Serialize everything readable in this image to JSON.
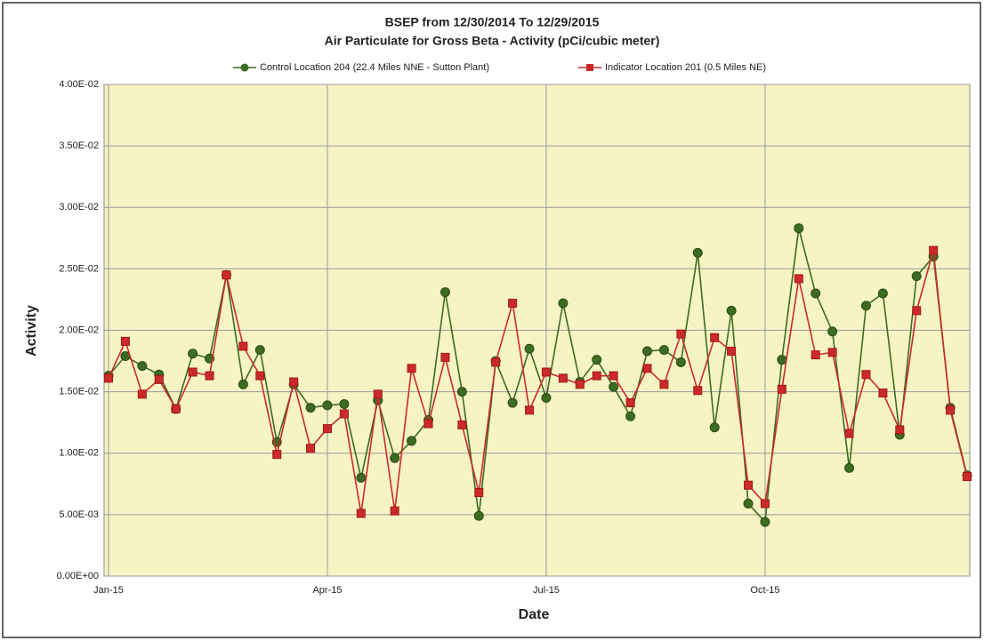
{
  "chart_data": {
    "type": "line",
    "title": "BSEP from 12/30/2014 To 12/29/2015",
    "subtitle": "Air Particulate for Gross Beta - Activity (pCi/cubic meter)",
    "x_label": "Date",
    "y_label": "Activity",
    "categories": [
      "Jan-15",
      null,
      null,
      null,
      null,
      null,
      null,
      null,
      null,
      null,
      null,
      null,
      null,
      "Apr-15",
      null,
      null,
      null,
      null,
      null,
      null,
      null,
      null,
      null,
      null,
      null,
      null,
      "Jul-15",
      null,
      null,
      null,
      null,
      null,
      null,
      null,
      null,
      null,
      null,
      null,
      null,
      "Oct-15",
      null,
      null,
      null,
      null,
      null,
      null,
      null,
      null,
      null,
      null,
      null,
      null
    ],
    "series": [
      {
        "name": "Control Location 204 (22.4 Miles NNE - Sutton Plant)",
        "color": "#3d6b22",
        "marker": "circle",
        "values": [
          0.0163,
          0.0179,
          0.0171,
          0.0164,
          0.0136,
          0.0181,
          0.0177,
          0.0245,
          0.0156,
          0.0184,
          0.0109,
          0.0156,
          0.0137,
          0.0139,
          0.014,
          0.008,
          0.0143,
          0.0096,
          0.011,
          0.0127,
          0.0231,
          0.015,
          0.0049,
          0.0175,
          0.0141,
          0.0185,
          0.0145,
          0.0222,
          0.0158,
          0.0176,
          0.0154,
          0.013,
          0.0183,
          0.0184,
          0.0174,
          0.0263,
          0.0121,
          0.0216,
          0.0059,
          0.0044,
          0.0176,
          0.0283,
          0.023,
          0.0199,
          0.0088,
          0.022,
          0.023,
          0.0115,
          0.0244,
          0.026,
          0.0137,
          0.0082
        ]
      },
      {
        "name": "Indicator Location 201 (0.5 Miles NE)",
        "color": "#cc2a2a",
        "marker": "square",
        "values": [
          0.0161,
          0.0191,
          0.0148,
          0.016,
          0.0136,
          0.0166,
          0.0163,
          0.0245,
          0.0187,
          0.0163,
          0.0099,
          0.0158,
          0.0104,
          0.012,
          0.0132,
          0.0051,
          0.0148,
          0.0053,
          0.0169,
          0.0124,
          0.0178,
          0.0123,
          0.0068,
          0.0174,
          0.0222,
          0.0135,
          0.0166,
          0.0161,
          0.0156,
          0.0163,
          0.0163,
          0.0141,
          0.0169,
          0.0156,
          0.0197,
          0.0151,
          0.0194,
          0.0183,
          0.0074,
          0.0059,
          0.0152,
          0.0242,
          0.018,
          0.0182,
          0.0116,
          0.0164,
          0.0149,
          0.0119,
          0.0216,
          0.0265,
          0.0135,
          0.0081
        ]
      }
    ],
    "ylim": [
      0,
      0.04
    ],
    "yticks": [
      {
        "value": 0,
        "label": "0.00E+00"
      },
      {
        "value": 0.005,
        "label": "5.00E-03"
      },
      {
        "value": 0.01,
        "label": "1.00E-02"
      },
      {
        "value": 0.015,
        "label": "1.50E-02"
      },
      {
        "value": 0.02,
        "label": "2.00E-02"
      },
      {
        "value": 0.025,
        "label": "2.50E-02"
      },
      {
        "value": 0.03,
        "label": "3.00E-02"
      },
      {
        "value": 0.035,
        "label": "3.50E-02"
      },
      {
        "value": 0.04,
        "label": "4.00E-02"
      }
    ],
    "grid": true,
    "legend": "top",
    "plot_background": "#f6f4c4"
  }
}
